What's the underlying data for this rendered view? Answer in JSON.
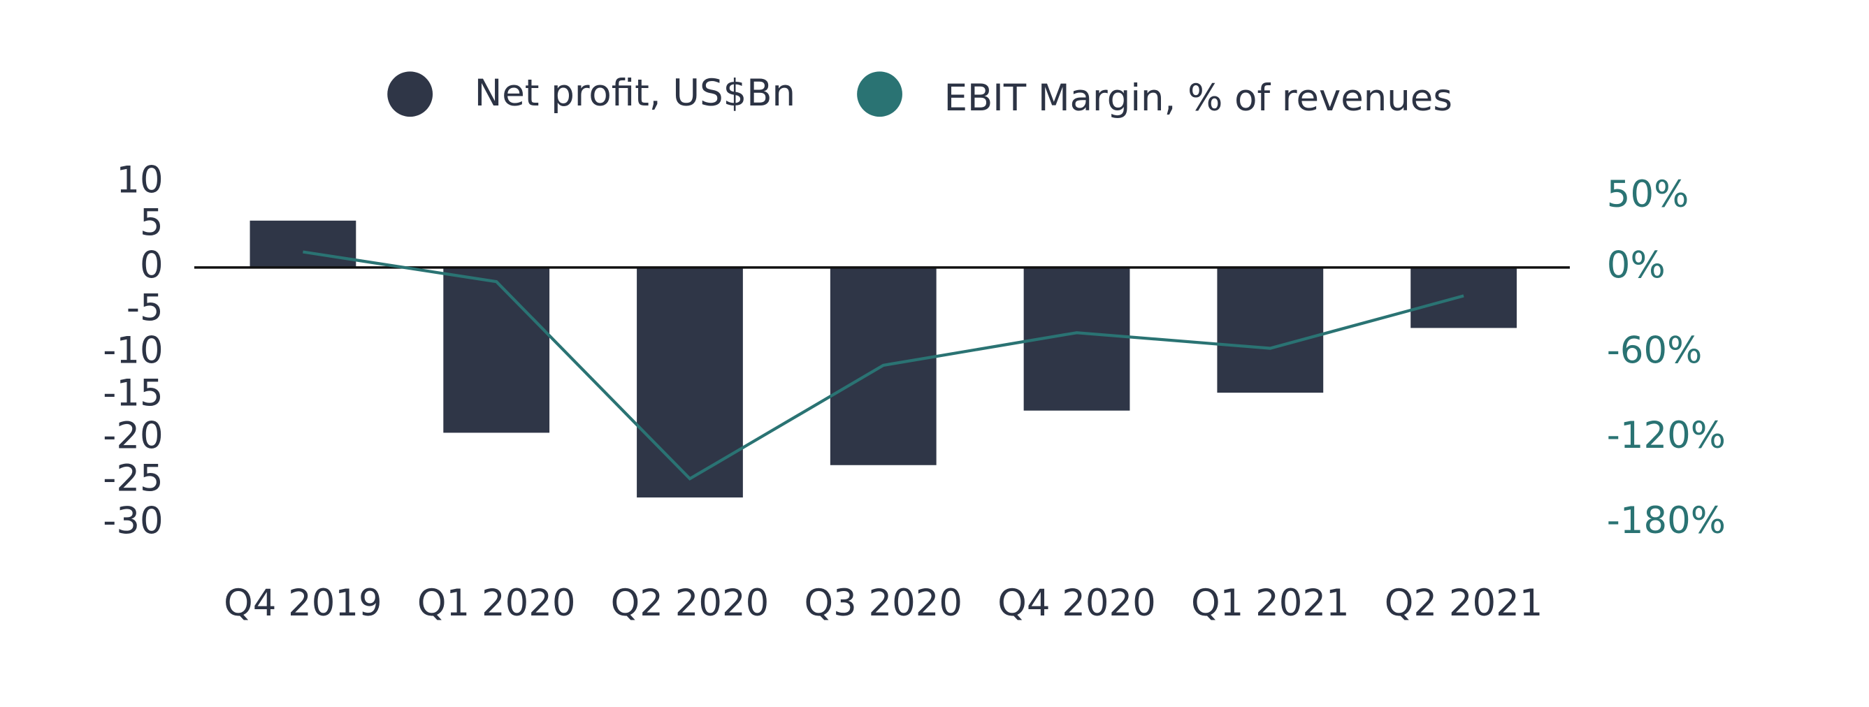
{
  "chart_data": {
    "type": "bar_line",
    "categories": [
      "Q4 2019",
      "Q1 2020",
      "Q2 2020",
      "Q3 2020",
      "Q4 2020",
      "Q1 2021",
      "Q2 2021"
    ],
    "series": [
      {
        "name": "Net profit, US$Bn",
        "color": "#2f3647",
        "type": "bar",
        "values": [
          5.5,
          -19.4,
          -27,
          -23.2,
          -16.8,
          -14.7,
          -7.1
        ]
      },
      {
        "name": "EBIT Margin, % of revenues",
        "color": "#2a7373",
        "type": "line",
        "axis": "y2",
        "values": [
          11,
          -10,
          -149,
          -69,
          -46,
          -57,
          -20
        ]
      }
    ],
    "ylim": [
      -30,
      10
    ],
    "yticks": [
      10,
      5,
      0,
      -5,
      -10,
      -15,
      -20,
      -25,
      -30
    ],
    "y2lim": [
      -180,
      50
    ],
    "y2ticks": [
      {
        "value": 50,
        "label": "50%"
      },
      {
        "value": 0,
        "label": "0%"
      },
      {
        "value": -60,
        "label": "-60%"
      },
      {
        "value": -120,
        "label": "-120%"
      },
      {
        "value": -180,
        "label": "-180%"
      }
    ]
  }
}
